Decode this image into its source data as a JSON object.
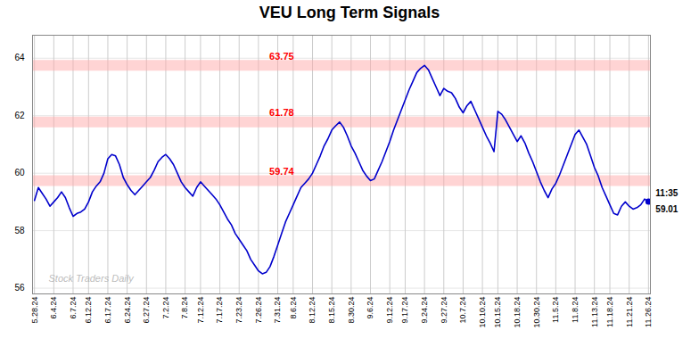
{
  "chart_data": {
    "type": "line",
    "title": "VEU Long Term Signals",
    "watermark": "Stock Traders Daily",
    "color": "#0000cc",
    "grid": true,
    "ylim": [
      55.8,
      64.8
    ],
    "yticks": [
      56,
      58,
      60,
      62,
      64
    ],
    "hlines": [
      63.75,
      61.78,
      59.74
    ],
    "hline_color": "#ffaaaa",
    "annotations": [
      {
        "text": "63.75",
        "y": 63.75,
        "color": "red"
      },
      {
        "text": "61.78",
        "y": 61.78,
        "color": "red"
      },
      {
        "text": "59.74",
        "y": 59.74,
        "color": "red"
      }
    ],
    "last_price": 59.01,
    "last_price_time": "11:35",
    "categories": [
      "5.28.24",
      null,
      null,
      null,
      null,
      "6.4.24",
      null,
      null,
      null,
      null,
      "6.7.24",
      null,
      null,
      null,
      "6.12.24",
      null,
      null,
      null,
      null,
      "6.17.24",
      null,
      null,
      null,
      null,
      "6.24.24",
      null,
      null,
      null,
      null,
      "6.27.24",
      null,
      null,
      null,
      null,
      "7.2.24",
      null,
      null,
      null,
      null,
      "7.8.24",
      null,
      null,
      null,
      "7.12.24",
      null,
      null,
      null,
      null,
      "7.17.24",
      null,
      null,
      null,
      null,
      "7.23.24",
      null,
      null,
      null,
      null,
      "7.26.24",
      null,
      null,
      null,
      null,
      "7.31.24",
      null,
      null,
      null,
      "8.6.24",
      null,
      null,
      null,
      null,
      "8.12.24",
      null,
      null,
      null,
      null,
      "8.15.24",
      null,
      null,
      null,
      null,
      "8.30.24",
      null,
      null,
      null,
      null,
      "9.6.24",
      null,
      null,
      null,
      null,
      "9.12.24",
      null,
      null,
      null,
      "9.17.24",
      null,
      null,
      null,
      null,
      "9.24.24",
      null,
      null,
      null,
      null,
      "9.27.24",
      null,
      null,
      null,
      null,
      "10.7.24",
      null,
      null,
      null,
      null,
      "10.10.24",
      null,
      null,
      null,
      "10.15.24",
      null,
      null,
      null,
      null,
      "10.18.24",
      null,
      null,
      null,
      null,
      "10.30.24",
      null,
      null,
      null,
      null,
      "11.5.24",
      null,
      null,
      null,
      null,
      "11.8.24",
      null,
      null,
      null,
      null,
      "11.13.24",
      null,
      null,
      null,
      "11.18.24",
      null,
      null,
      null,
      null,
      "11.21.24",
      null,
      null,
      null,
      null,
      "11.26.24"
    ],
    "values": [
      59.05,
      59.5,
      59.3,
      59.1,
      58.85,
      59.0,
      59.15,
      59.35,
      59.15,
      58.8,
      58.5,
      58.6,
      58.65,
      58.75,
      59.0,
      59.35,
      59.55,
      59.7,
      60.0,
      60.5,
      60.65,
      60.6,
      60.3,
      59.85,
      59.6,
      59.4,
      59.25,
      59.4,
      59.55,
      59.7,
      59.85,
      60.1,
      60.4,
      60.55,
      60.65,
      60.5,
      60.3,
      60.0,
      59.7,
      59.5,
      59.35,
      59.2,
      59.5,
      59.7,
      59.55,
      59.4,
      59.25,
      59.1,
      58.9,
      58.65,
      58.4,
      58.2,
      57.9,
      57.7,
      57.5,
      57.3,
      57.0,
      56.8,
      56.6,
      56.5,
      56.55,
      56.75,
      57.1,
      57.5,
      57.9,
      58.3,
      58.6,
      58.9,
      59.2,
      59.5,
      59.65,
      59.8,
      60.0,
      60.3,
      60.6,
      60.95,
      61.2,
      61.5,
      61.65,
      61.78,
      61.6,
      61.3,
      60.95,
      60.7,
      60.4,
      60.1,
      59.9,
      59.74,
      59.8,
      60.1,
      60.4,
      60.75,
      61.1,
      61.5,
      61.85,
      62.2,
      62.55,
      62.9,
      63.2,
      63.5,
      63.65,
      63.75,
      63.6,
      63.3,
      63.0,
      62.7,
      62.95,
      62.85,
      62.8,
      62.6,
      62.3,
      62.1,
      62.35,
      62.5,
      62.2,
      61.9,
      61.6,
      61.3,
      61.05,
      60.75,
      62.15,
      62.05,
      61.85,
      61.6,
      61.35,
      61.1,
      61.3,
      61.05,
      60.7,
      60.4,
      60.05,
      59.7,
      59.4,
      59.15,
      59.45,
      59.65,
      59.95,
      60.3,
      60.65,
      61.0,
      61.35,
      61.5,
      61.25,
      61.0,
      60.6,
      60.2,
      59.9,
      59.5,
      59.2,
      58.9,
      58.6,
      58.55,
      58.85,
      59.0,
      58.85,
      58.75,
      58.8,
      58.9,
      59.1,
      59.01
    ]
  }
}
